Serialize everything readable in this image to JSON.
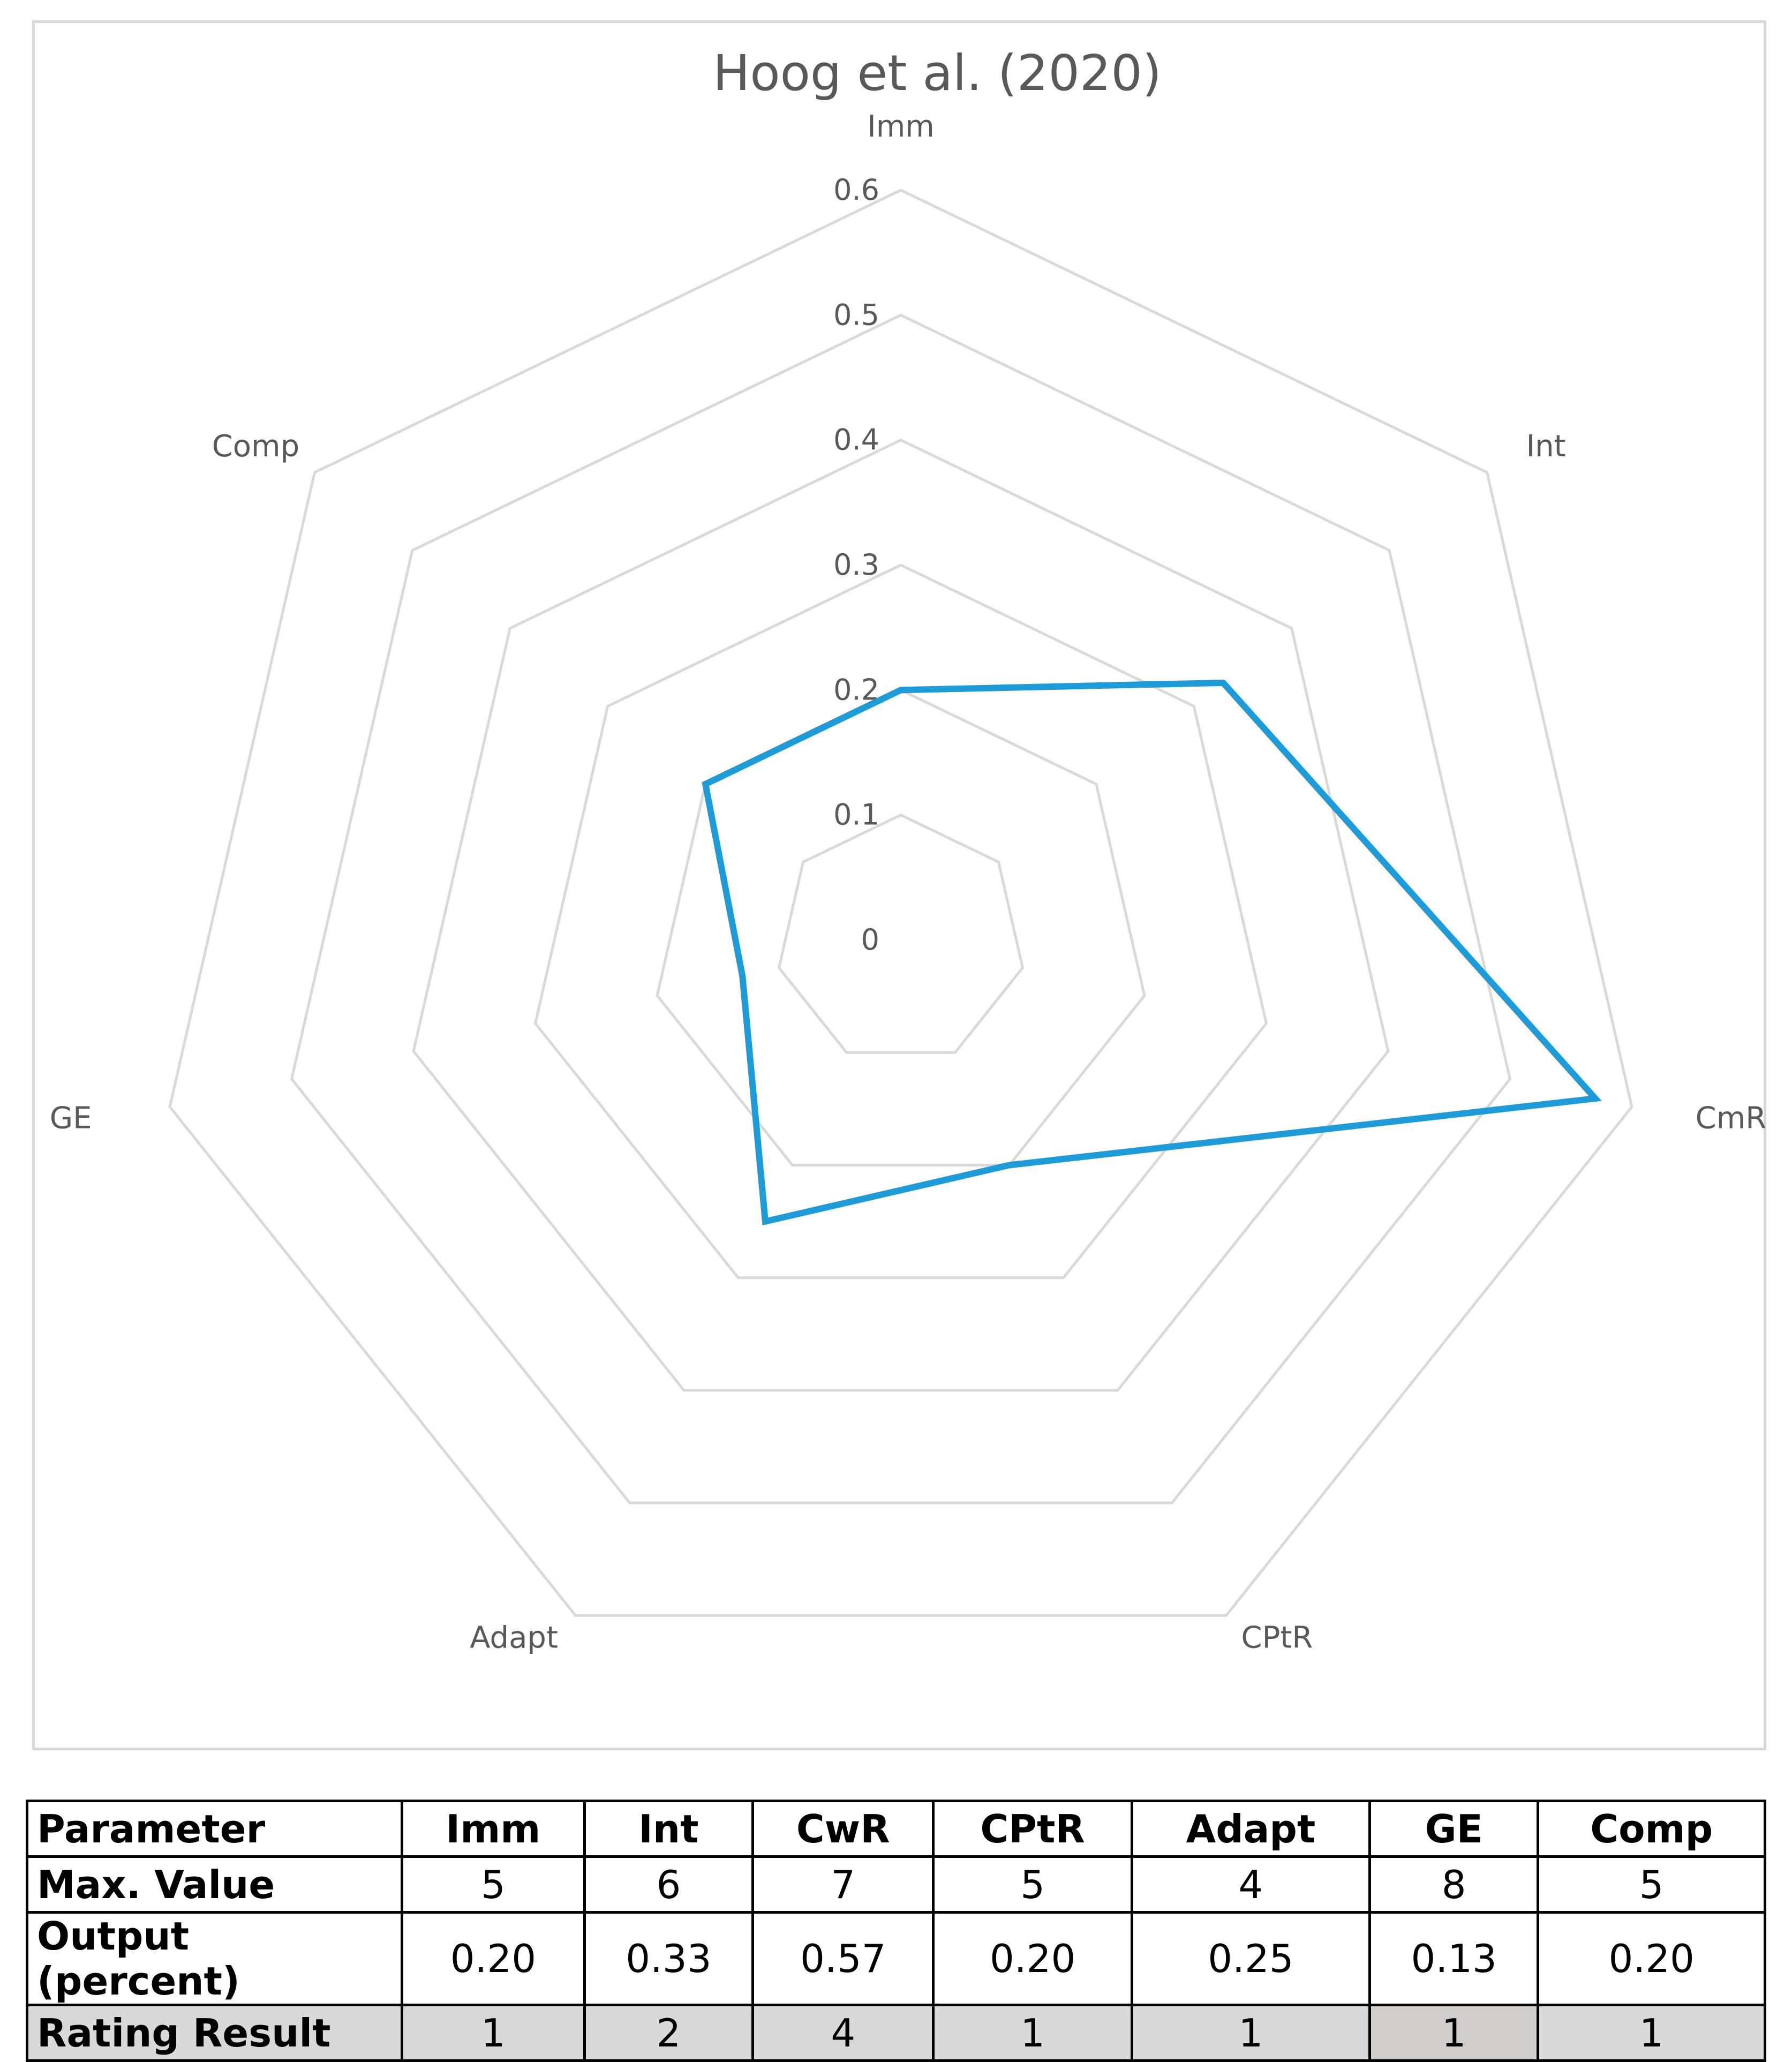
{
  "chart_data": {
    "type": "radar",
    "title": "Hoog et al. (2020)",
    "axes": [
      "Imm",
      "Int",
      "CmR",
      "CPtR",
      "Adapt",
      "GE",
      "Comp"
    ],
    "ticks": [
      "0",
      "0.1",
      "0.2",
      "0.3",
      "0.4",
      "0.5",
      "0.6"
    ],
    "rlim": [
      0,
      0.6
    ],
    "grid": true,
    "series": [
      {
        "values": [
          0.2,
          0.33,
          0.57,
          0.2,
          0.25,
          0.13,
          0.2
        ],
        "color": "#1f9bd7"
      }
    ],
    "gridColor": "#d9d9d9"
  },
  "table": {
    "header": [
      "Parameter",
      "Imm",
      "Int",
      "CwR",
      "CPtR",
      "Adapt",
      "GE",
      "Comp"
    ],
    "rows": [
      [
        "Max. Value",
        "5",
        "6",
        "7",
        "5",
        "4",
        "8",
        "5"
      ],
      [
        "Output (percent)",
        "0.20",
        "0.33",
        "0.57",
        "0.20",
        "0.25",
        "0.13",
        "0.20"
      ],
      [
        "Rating Result",
        "1",
        "2",
        "4",
        "1",
        "1",
        "1",
        "1"
      ]
    ]
  }
}
